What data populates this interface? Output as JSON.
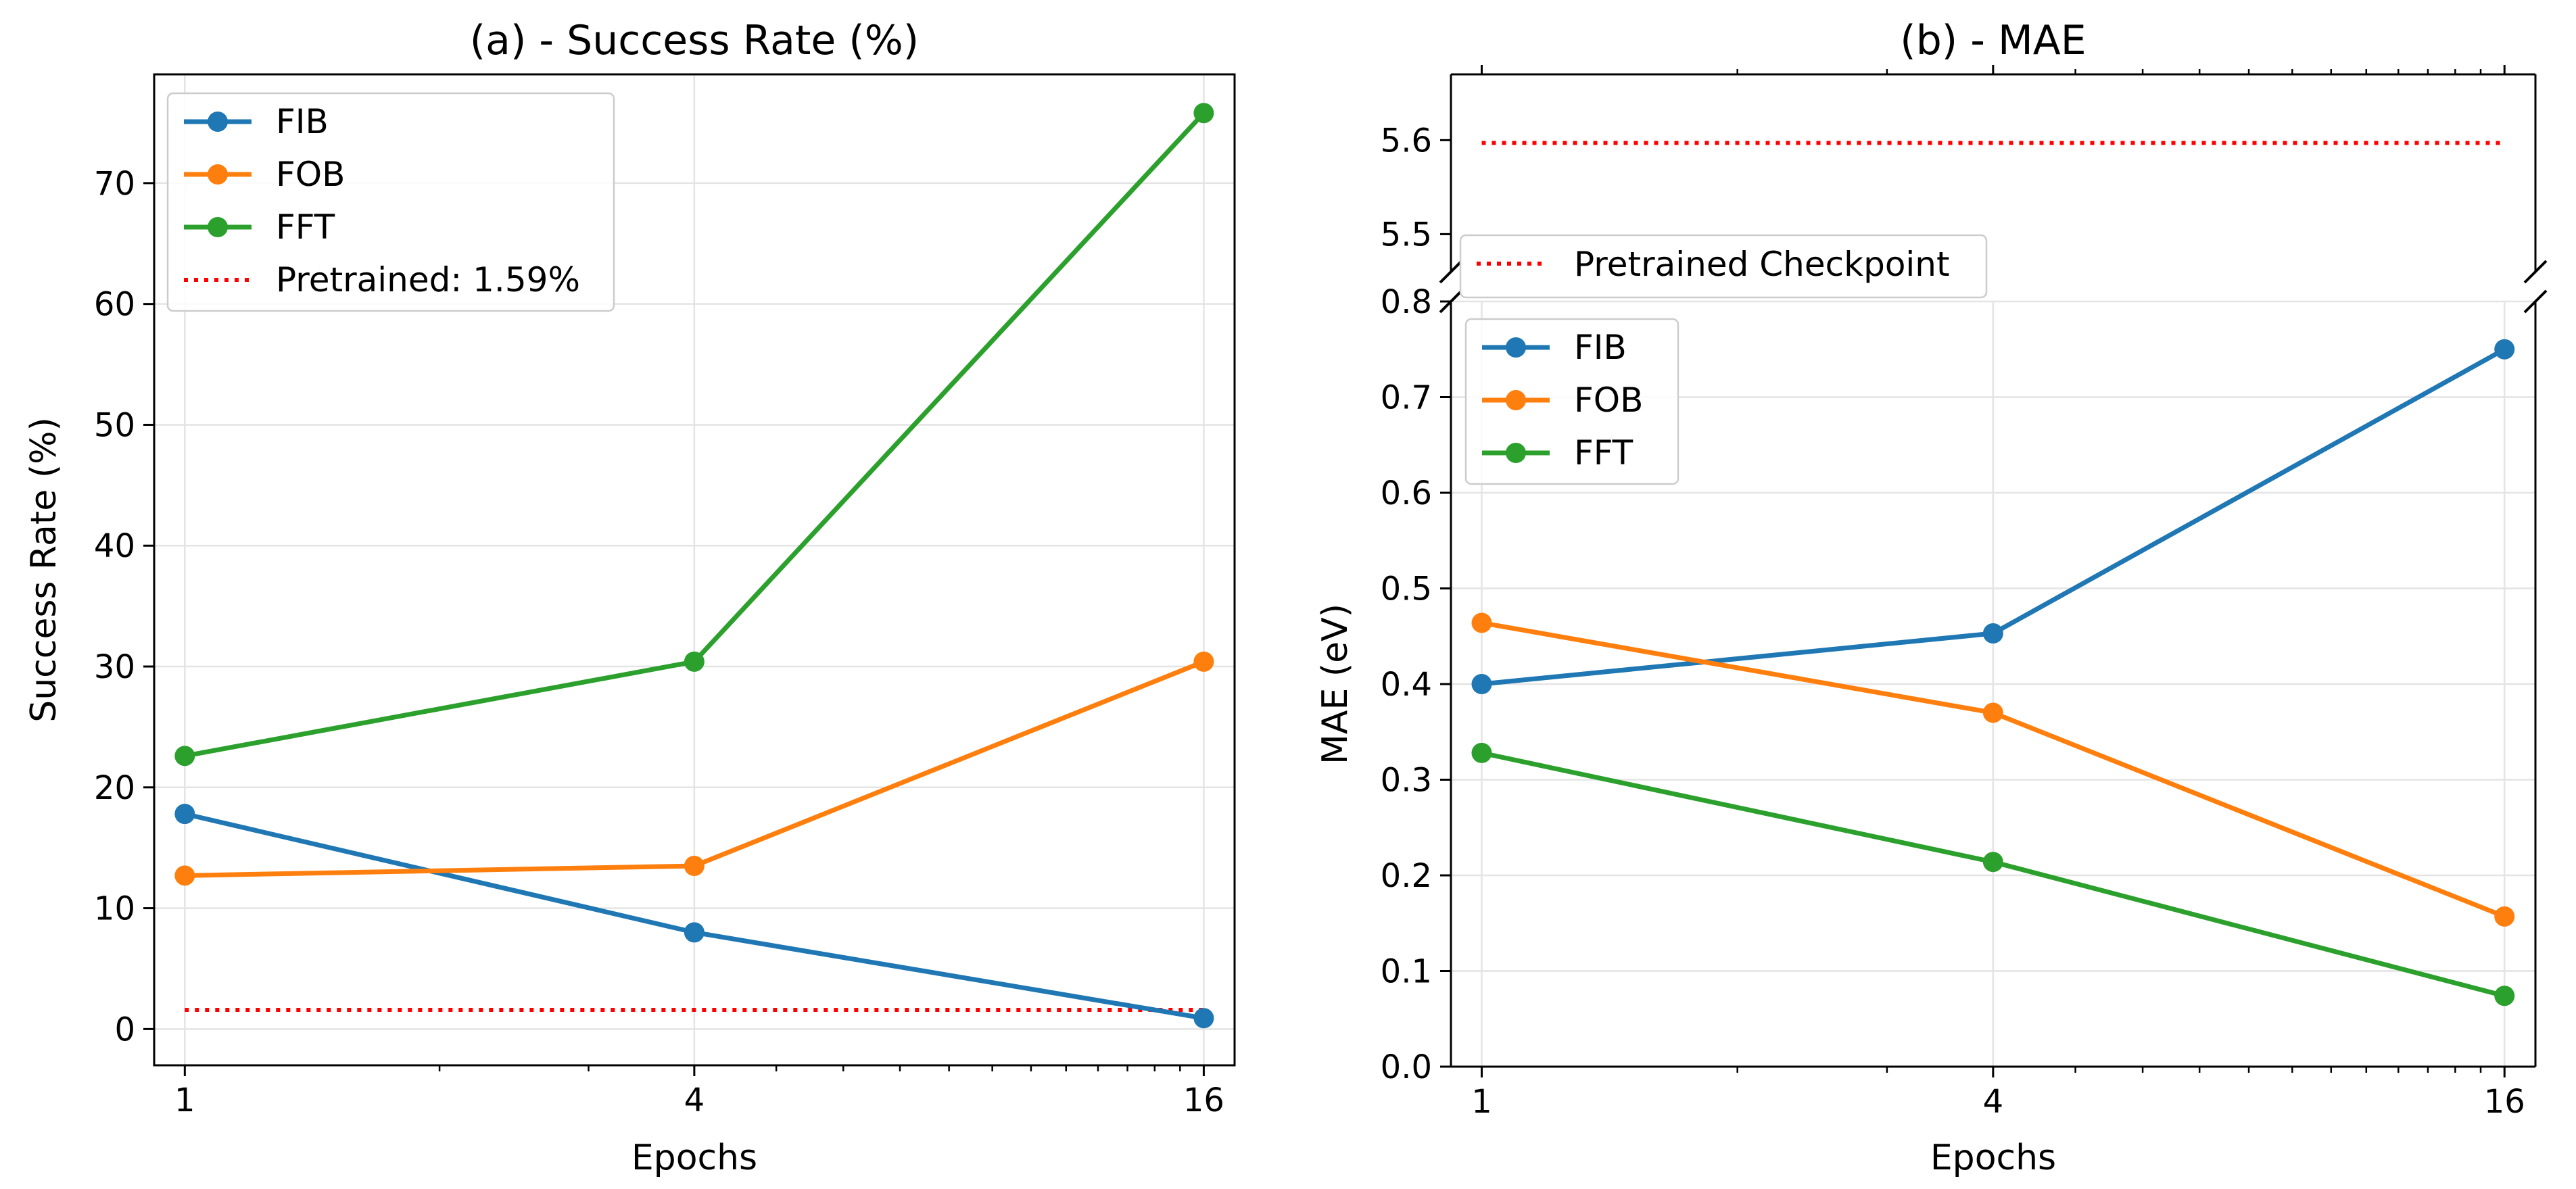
{
  "chart_data": [
    {
      "id": "success",
      "type": "line",
      "title": "(a) - Success Rate (%)",
      "xlabel": "Epochs",
      "ylabel": "Success Rate (%)",
      "xscale": "log2",
      "x": [
        1,
        4,
        16
      ],
      "xticks": [
        "1",
        "4",
        "16"
      ],
      "ylim": [
        -3,
        79
      ],
      "yticks": [
        0,
        10,
        20,
        30,
        40,
        50,
        60,
        70
      ],
      "grid": true,
      "series": [
        {
          "name": "FIB",
          "color": "#1f77b4",
          "values": [
            17.8,
            8.0,
            0.9
          ]
        },
        {
          "name": "FOB",
          "color": "#ff7f0e",
          "values": [
            12.7,
            13.5,
            30.4
          ]
        },
        {
          "name": "FFT",
          "color": "#2ca02c",
          "values": [
            22.6,
            30.4,
            75.8
          ]
        }
      ],
      "reference": {
        "name": "Pretrained: 1.59%",
        "value": 1.59,
        "color": "#ff0000",
        "style": "dotted"
      },
      "legend": "top-left"
    },
    {
      "id": "mae",
      "type": "line",
      "title": "(b) - MAE",
      "xlabel": "Epochs",
      "ylabel": "MAE (eV)",
      "xscale": "log2",
      "x": [
        1,
        4,
        16
      ],
      "xticks": [
        "1",
        "4",
        "16"
      ],
      "broken_axis": true,
      "upper_ylim": [
        5.46,
        5.67
      ],
      "upper_yticks": [
        5.5,
        5.6
      ],
      "lower_ylim": [
        0,
        0.8
      ],
      "lower_yticks": [
        0.0,
        0.1,
        0.2,
        0.3,
        0.4,
        0.5,
        0.6,
        0.7,
        0.8
      ],
      "grid": true,
      "series": [
        {
          "name": "FIB",
          "color": "#1f77b4",
          "values": [
            0.4,
            0.453,
            0.75
          ]
        },
        {
          "name": "FOB",
          "color": "#ff7f0e",
          "values": [
            0.464,
            0.37,
            0.157
          ]
        },
        {
          "name": "FFT",
          "color": "#2ca02c",
          "values": [
            0.328,
            0.214,
            0.074
          ]
        }
      ],
      "reference": {
        "name": "Pretrained Checkpoint",
        "value": 5.597,
        "color": "#ff0000",
        "style": "dotted"
      },
      "legend": "top-left"
    }
  ]
}
